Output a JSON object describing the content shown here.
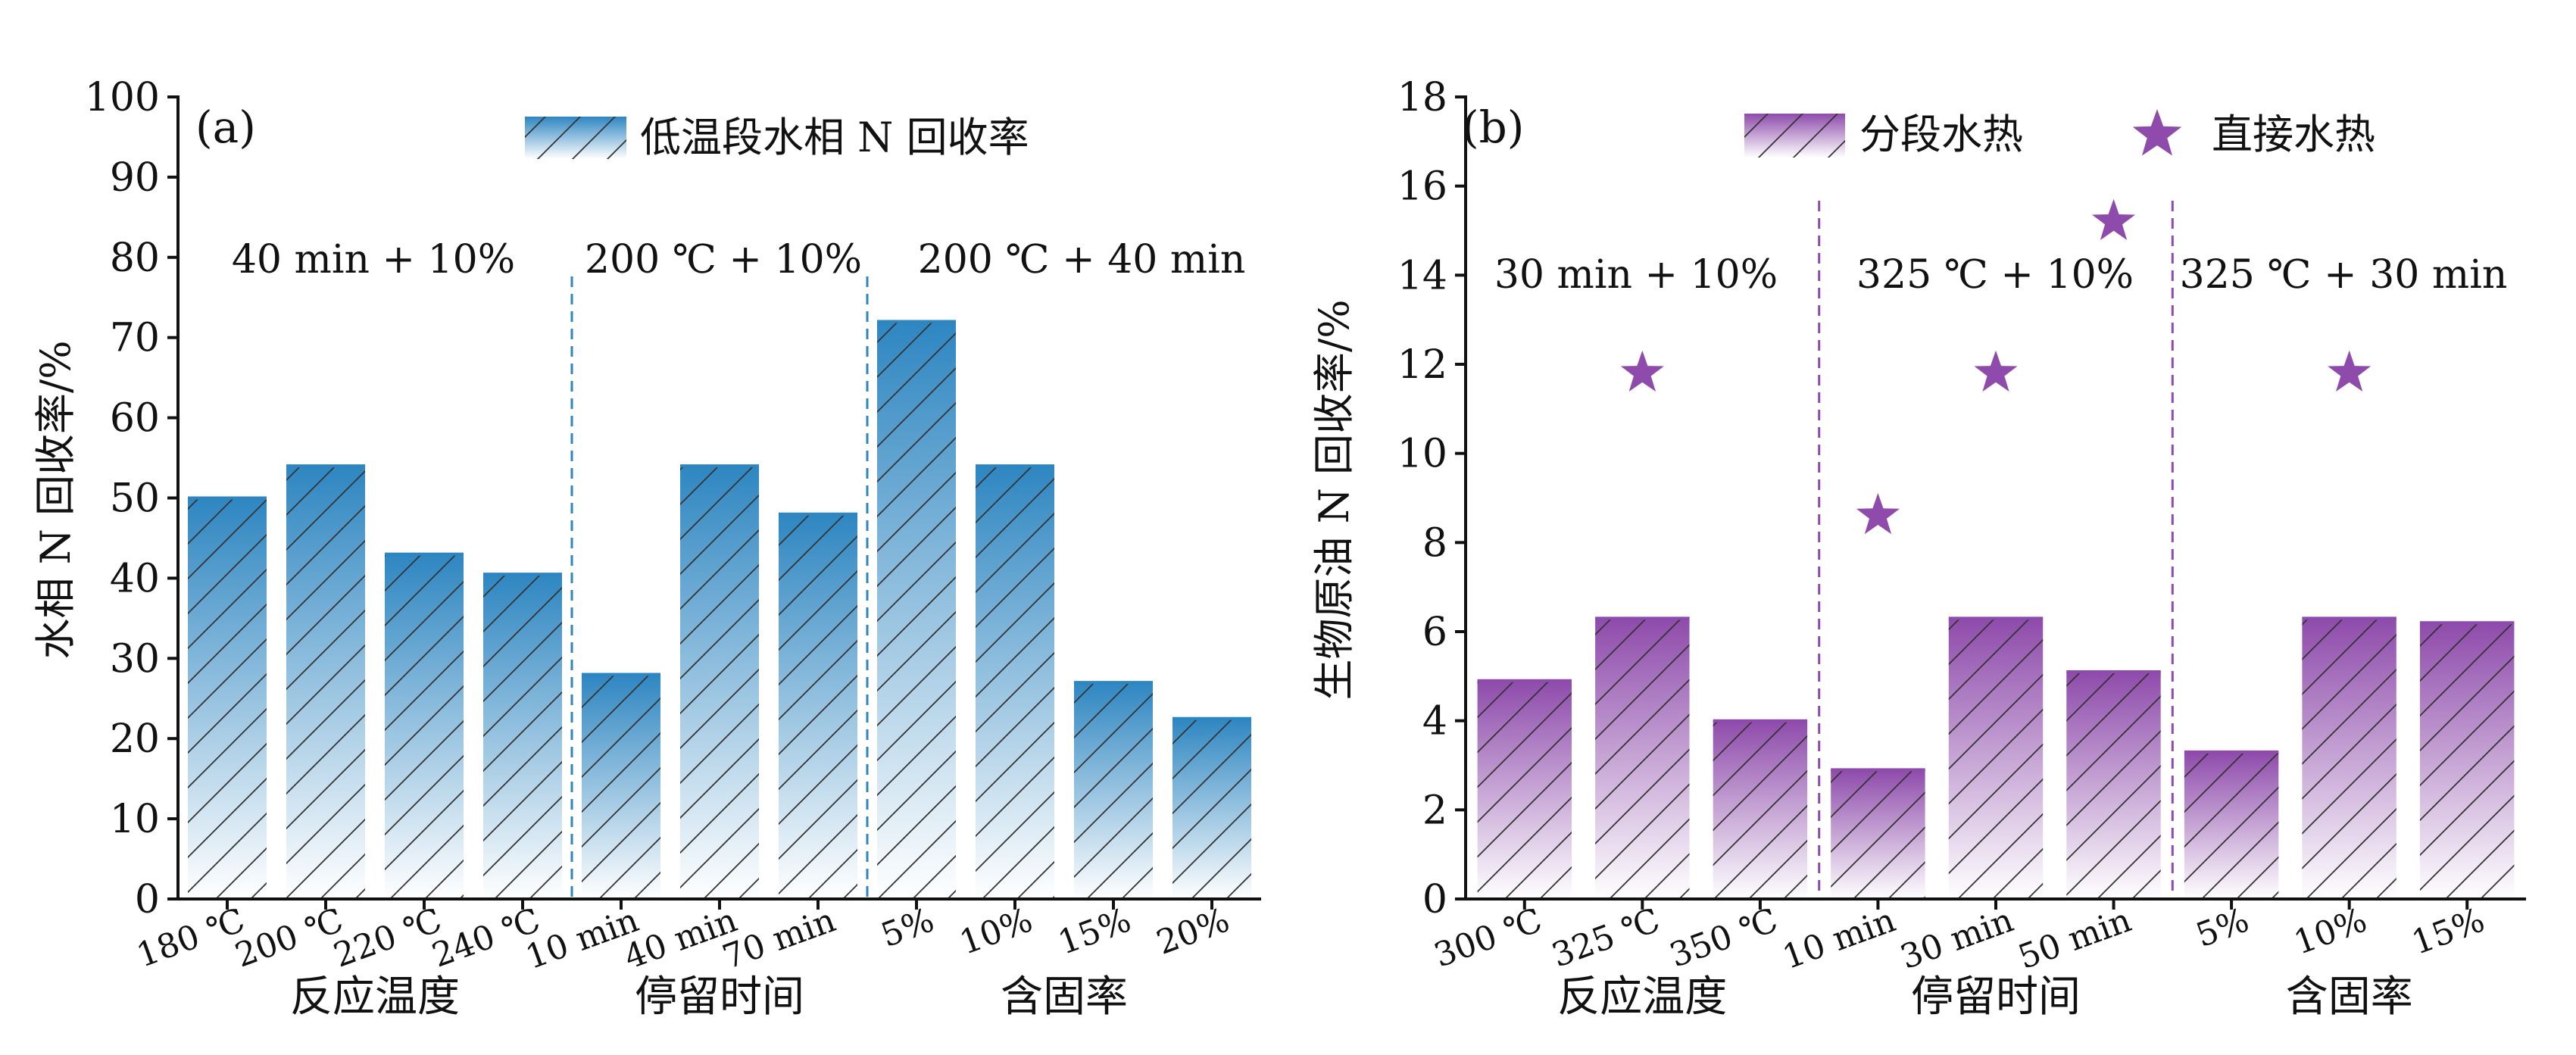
{
  "chart_data": [
    {
      "panel_label": "(a)",
      "type": "bar",
      "ylabel": "水相 N 回收率/%",
      "ylim": [
        0,
        100
      ],
      "yticks": [
        "0",
        "10",
        "20",
        "30",
        "40",
        "50",
        "60",
        "70",
        "80",
        "90",
        "100"
      ],
      "legend": {
        "label": "低温段水相 N 回收率",
        "position": "top-center"
      },
      "categories": [
        "180 ℃",
        "200 ℃",
        "220 ℃",
        "240 ℃",
        "10 min",
        "40 min",
        "70 min",
        "5%",
        "10%",
        "15%",
        "20%"
      ],
      "series": [
        {
          "name": "低温段水相 N 回收率",
          "values": [
            50,
            54,
            43,
            40.5,
            28,
            54,
            48,
            72,
            54,
            27,
            22.5
          ]
        }
      ],
      "groups": [
        {
          "label": "反应温度",
          "condition": "40 min + 10%",
          "count": 4
        },
        {
          "label": "停留时间",
          "condition": "200 ℃ + 10%",
          "count": 3
        },
        {
          "label": "含固率",
          "condition": "200 ℃ + 40 min",
          "count": 4
        }
      ],
      "colors": {
        "bar": "#2e86c1",
        "divider": "#2e86c1"
      }
    },
    {
      "panel_label": "(b)",
      "type": "bar",
      "ylabel": "生物原油 N 回收率/%",
      "ylim": [
        0,
        18
      ],
      "yticks": [
        "0",
        "2",
        "4",
        "6",
        "8",
        "10",
        "12",
        "14",
        "16",
        "18"
      ],
      "legend": {
        "position": "top-right"
      },
      "categories": [
        "300 ℃",
        "325 ℃",
        "350 ℃",
        "10 min",
        "30 min",
        "50 min",
        "5%",
        "10%",
        "15%"
      ],
      "series": [
        {
          "name": "分段水热",
          "values": [
            4.9,
            6.3,
            4.0,
            2.9,
            6.3,
            5.1,
            3.3,
            6.3,
            6.2
          ]
        },
        {
          "name": "直接水热",
          "marker": "star",
          "values": [
            null,
            11.8,
            null,
            8.6,
            11.8,
            15.2,
            null,
            11.8,
            null
          ]
        }
      ],
      "groups": [
        {
          "label": "反应温度",
          "condition": "30 min + 10%",
          "count": 3
        },
        {
          "label": "停留时间",
          "condition": "325 ℃ + 10%",
          "count": 3
        },
        {
          "label": "含固率",
          "condition": "325 ℃ + 30 min",
          "count": 3
        }
      ],
      "colors": {
        "bar": "#8e4bab",
        "star": "#8e4bab",
        "divider": "#8e4bab"
      }
    }
  ]
}
